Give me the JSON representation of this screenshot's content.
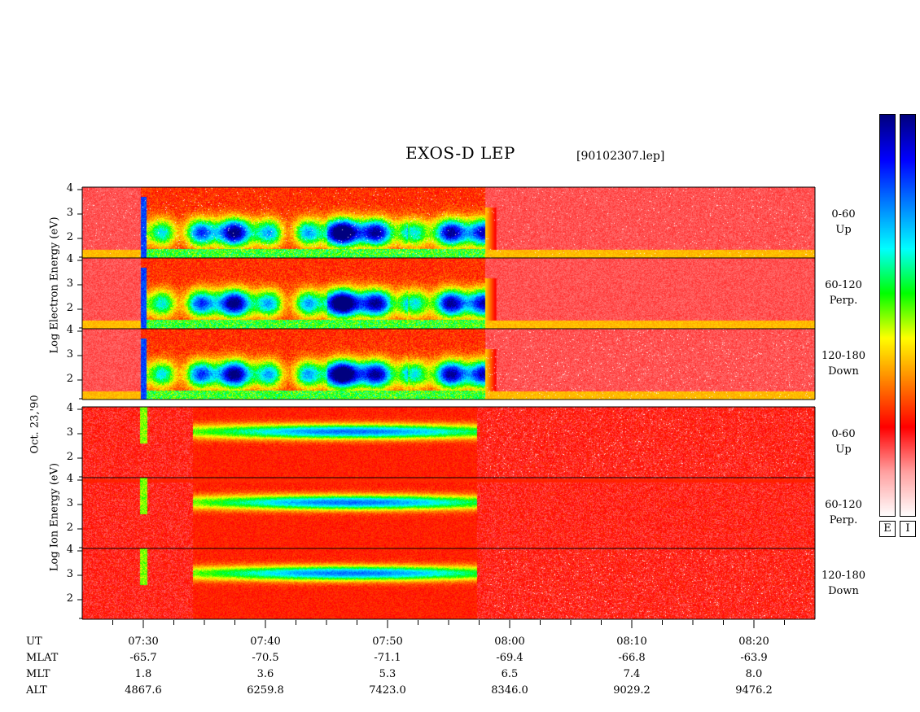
{
  "header": {
    "title": "EXOS-D LEP",
    "filename": "[90102307.lep]"
  },
  "chart_data": {
    "type": "heatmap",
    "date_label": "Oct. 23,'90",
    "groups": [
      {
        "axis_label": "Log Electron Energy (eV)",
        "panels": [
          {
            "pitch_range": "0-60",
            "direction": "Up",
            "yticks": [
              "4",
              "3",
              "2"
            ]
          },
          {
            "pitch_range": "60-120",
            "direction": "Perp.",
            "yticks": [
              "4",
              "3",
              "2"
            ]
          },
          {
            "pitch_range": "120-180",
            "direction": "Down",
            "yticks": [
              "4",
              "3",
              "2"
            ]
          }
        ]
      },
      {
        "axis_label": "Log Ion Energy (eV)",
        "panels": [
          {
            "pitch_range": "0-60",
            "direction": "Up",
            "yticks": [
              "4",
              "3",
              "2"
            ]
          },
          {
            "pitch_range": "60-120",
            "direction": "Perp.",
            "yticks": [
              "4",
              "3",
              "2"
            ]
          },
          {
            "pitch_range": "120-180",
            "direction": "Down",
            "yticks": [
              "4",
              "3",
              "2"
            ]
          }
        ]
      }
    ],
    "ylim": [
      1.2,
      4.1
    ],
    "x_ticks": [
      {
        "UT": "07:30",
        "MLAT": "-65.7",
        "MLT": "1.8",
        "ALT": "4867.6"
      },
      {
        "UT": "07:40",
        "MLAT": "-70.5",
        "MLT": "3.6",
        "ALT": "6259.8"
      },
      {
        "UT": "07:50",
        "MLAT": "-71.1",
        "MLT": "5.3",
        "ALT": "7423.0"
      },
      {
        "UT": "08:00",
        "MLAT": "-69.4",
        "MLT": "6.5",
        "ALT": "8346.0"
      },
      {
        "UT": "08:10",
        "MLAT": "-66.8",
        "MLT": "7.4",
        "ALT": "9029.2"
      },
      {
        "UT": "08:20",
        "MLAT": "-63.9",
        "MLT": "8.0",
        "ALT": "9476.2"
      }
    ],
    "x_range_minutes": [
      "07:25",
      "08:25"
    ],
    "row_labels": [
      "UT",
      "MLAT",
      "MLT",
      "ALT"
    ],
    "colorbars": [
      {
        "tag": "E"
      },
      {
        "tag": "I"
      }
    ],
    "colors": [
      "#00007f",
      "#0000ff",
      "#0080ff",
      "#00ffff",
      "#00ff00",
      "#ffff00",
      "#ff8000",
      "#ff0000",
      "#ffa0a0",
      "#ffffff"
    ]
  }
}
